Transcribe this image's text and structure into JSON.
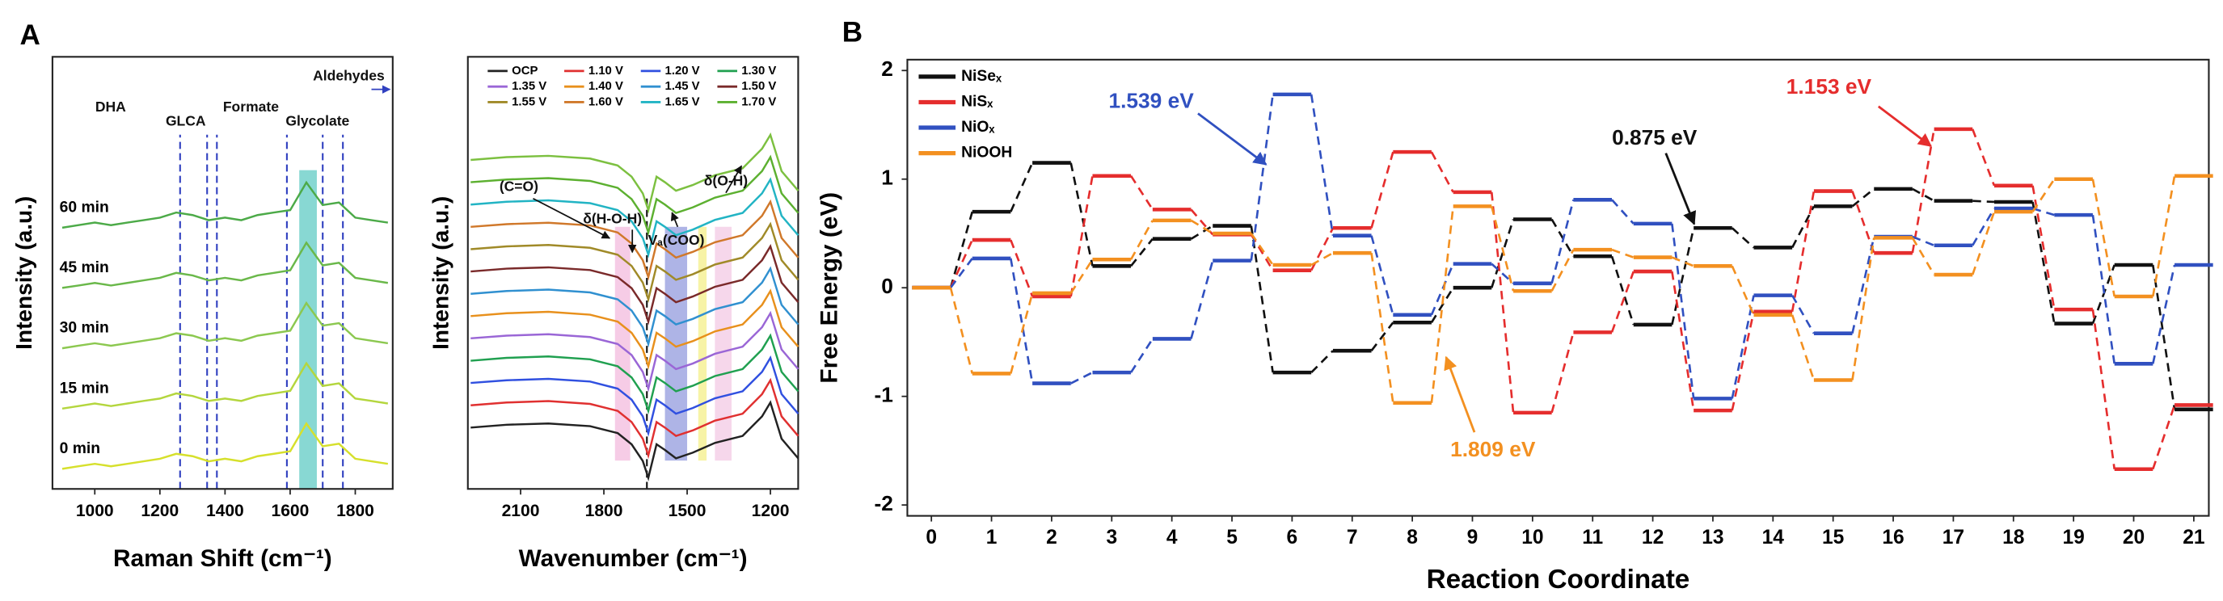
{
  "chart_data": [
    {
      "type": "line",
      "panel": "A",
      "x_label": "Raman Shift (cm⁻¹)",
      "y_label": "Intensity (a.u.)",
      "x": [
        900,
        950,
        1000,
        1050,
        1100,
        1150,
        1200,
        1250,
        1300,
        1350,
        1400,
        1450,
        1500,
        1550,
        1600,
        1650,
        1700,
        1750,
        1800,
        1850,
        1900
      ],
      "xlim": [
        870,
        1915
      ],
      "xticks": [
        1000,
        1200,
        1400,
        1600,
        1800
      ],
      "ylim": [
        -0.4,
        8.2
      ],
      "legend": "inline",
      "series": [
        {
          "name": "0 min",
          "color": "#d6e02c",
          "values": [
            0,
            0.05,
            0.1,
            0.05,
            0.1,
            0.15,
            0.2,
            0.3,
            0.25,
            0.15,
            0.2,
            0.15,
            0.25,
            0.3,
            0.35,
            0.9,
            0.45,
            0.5,
            0.2,
            0.15,
            0.1
          ]
        },
        {
          "name": "15 min",
          "color": "#b4d63e",
          "values": [
            1.2,
            1.25,
            1.3,
            1.25,
            1.3,
            1.35,
            1.4,
            1.5,
            1.45,
            1.35,
            1.4,
            1.35,
            1.45,
            1.5,
            1.55,
            2.1,
            1.65,
            1.7,
            1.4,
            1.35,
            1.3
          ]
        },
        {
          "name": "30 min",
          "color": "#8cc850",
          "values": [
            2.4,
            2.45,
            2.5,
            2.45,
            2.5,
            2.55,
            2.6,
            2.7,
            2.65,
            2.55,
            2.6,
            2.55,
            2.65,
            2.7,
            2.75,
            3.3,
            2.85,
            2.9,
            2.6,
            2.55,
            2.5
          ]
        },
        {
          "name": "45 min",
          "color": "#6ab84a",
          "values": [
            3.6,
            3.65,
            3.7,
            3.65,
            3.7,
            3.75,
            3.8,
            3.9,
            3.85,
            3.75,
            3.8,
            3.75,
            3.85,
            3.9,
            3.95,
            4.5,
            4.05,
            4.1,
            3.8,
            3.75,
            3.7
          ]
        },
        {
          "name": "60 min",
          "color": "#4caa48",
          "values": [
            4.8,
            4.85,
            4.9,
            4.85,
            4.9,
            4.95,
            5.0,
            5.1,
            5.05,
            4.95,
            5.0,
            4.95,
            5.05,
            5.1,
            5.15,
            5.7,
            5.25,
            5.3,
            5.0,
            4.95,
            4.9
          ]
        }
      ],
      "ref_lines": [
        1262,
        1345,
        1375,
        1590,
        1700,
        1762
      ],
      "bands": [
        {
          "from": 1628,
          "to": 1682,
          "color": "#56c8c0"
        }
      ],
      "annotations": [
        {
          "text": "DHA"
        },
        {
          "text": "GLCA"
        },
        {
          "text": "Formate"
        },
        {
          "text": "Glycolate"
        },
        {
          "text": "Aldehydes"
        }
      ]
    },
    {
      "type": "line",
      "x_label": "Wavenumber (cm⁻¹)",
      "y_label": "Intensity (a.u.)",
      "x": [
        2280,
        2150,
        2000,
        1850,
        1750,
        1700,
        1660,
        1640,
        1610,
        1580,
        1540,
        1480,
        1400,
        1300,
        1230,
        1200,
        1160,
        1100
      ],
      "xlim": [
        2290,
        1100
      ],
      "xticks": [
        2100,
        1800,
        1500,
        1200
      ],
      "ylim": [
        -2,
        13.5
      ],
      "legend": "top",
      "series": [
        {
          "name": "OCP",
          "color": "#222222",
          "values": [
            0.2,
            0.3,
            0.35,
            0.25,
            0,
            -0.4,
            -1.0,
            -1.6,
            -0.4,
            -0.6,
            -0.9,
            -0.7,
            -0.35,
            -0.1,
            0.6,
            1.1,
            -0.2,
            -0.9
          ]
        },
        {
          "name": "1.10 V",
          "color": "#e03030",
          "values": [
            1.0,
            1.1,
            1.15,
            1.05,
            0.8,
            0.4,
            -0.2,
            -0.8,
            0.4,
            0.2,
            -0.1,
            0.1,
            0.45,
            0.7,
            1.4,
            1.9,
            0.6,
            -0.1
          ]
        },
        {
          "name": "1.20 V",
          "color": "#3050e0",
          "values": [
            1.8,
            1.9,
            1.95,
            1.85,
            1.6,
            1.2,
            0.6,
            0,
            1.2,
            1.0,
            0.7,
            0.9,
            1.25,
            1.5,
            2.2,
            2.7,
            1.4,
            0.7
          ]
        },
        {
          "name": "1.30 V",
          "color": "#20a050",
          "values": [
            2.6,
            2.7,
            2.75,
            2.65,
            2.4,
            2.0,
            1.4,
            0.8,
            2.0,
            1.8,
            1.5,
            1.7,
            2.05,
            2.3,
            3.0,
            3.5,
            2.2,
            1.5
          ]
        },
        {
          "name": "1.35 V",
          "color": "#9a66d6",
          "values": [
            3.4,
            3.5,
            3.55,
            3.45,
            3.2,
            2.8,
            2.2,
            1.6,
            2.8,
            2.6,
            2.3,
            2.5,
            2.85,
            3.1,
            3.8,
            4.3,
            3.0,
            2.3
          ]
        },
        {
          "name": "1.40 V",
          "color": "#e8901c",
          "values": [
            4.2,
            4.3,
            4.35,
            4.25,
            4.0,
            3.6,
            3.0,
            2.4,
            3.6,
            3.4,
            3.1,
            3.3,
            3.65,
            3.9,
            4.6,
            5.1,
            3.8,
            3.1
          ]
        },
        {
          "name": "1.45 V",
          "color": "#3090d0",
          "values": [
            5.0,
            5.1,
            5.15,
            5.05,
            4.8,
            4.4,
            3.8,
            3.2,
            4.4,
            4.2,
            3.9,
            4.1,
            4.45,
            4.7,
            5.4,
            5.9,
            4.6,
            3.9
          ]
        },
        {
          "name": "1.50 V",
          "color": "#7a2a2a",
          "values": [
            5.8,
            5.9,
            5.95,
            5.85,
            5.6,
            5.2,
            4.6,
            4.0,
            5.2,
            5.0,
            4.7,
            4.9,
            5.25,
            5.5,
            6.2,
            6.7,
            5.4,
            4.7
          ]
        },
        {
          "name": "1.55 V",
          "color": "#a08a28",
          "values": [
            6.6,
            6.7,
            6.75,
            6.65,
            6.4,
            6.0,
            5.4,
            4.8,
            6.0,
            5.8,
            5.5,
            5.7,
            6.05,
            6.3,
            7.0,
            7.5,
            6.2,
            5.5
          ]
        },
        {
          "name": "1.60 V",
          "color": "#d0782a",
          "values": [
            7.4,
            7.5,
            7.55,
            7.45,
            7.2,
            6.8,
            6.2,
            5.6,
            6.8,
            6.6,
            6.3,
            6.5,
            6.85,
            7.1,
            7.8,
            8.3,
            7.0,
            6.3
          ]
        },
        {
          "name": "1.65 V",
          "color": "#22b4c4",
          "values": [
            8.2,
            8.3,
            8.35,
            8.25,
            8.0,
            7.6,
            7.0,
            6.4,
            7.6,
            7.4,
            7.1,
            7.3,
            7.65,
            7.9,
            8.6,
            9.1,
            7.8,
            7.1
          ]
        },
        {
          "name": "1.70 V",
          "color": "#5cb030",
          "values": [
            9.0,
            9.1,
            9.15,
            9.05,
            8.8,
            8.4,
            7.8,
            7.2,
            8.4,
            8.2,
            7.9,
            8.1,
            8.45,
            8.7,
            9.4,
            9.9,
            8.6,
            7.9
          ]
        },
        {
          "name": "1.70 V",
          "color": "#7cc040",
          "values": [
            9.8,
            9.9,
            9.95,
            9.85,
            9.6,
            9.2,
            8.6,
            8.0,
            9.2,
            9.0,
            8.7,
            8.9,
            9.25,
            9.5,
            10.2,
            10.7,
            9.4,
            8.7
          ]
        }
      ],
      "ref_lines": [
        1645
      ],
      "bands": [
        {
          "from": 1760,
          "to": 1705,
          "color": "#f2b6dc"
        },
        {
          "from": 1580,
          "to": 1500,
          "color": "#8c94dc"
        },
        {
          "from": 1460,
          "to": 1430,
          "color": "#f4ee80"
        },
        {
          "from": 1400,
          "to": 1340,
          "color": "#f2c6e2"
        }
      ],
      "annotations": [
        {
          "text": "(C=O)"
        },
        {
          "text": "δ(H-O-H)"
        },
        {
          "text": "Vₐ(COO)"
        },
        {
          "text": "δ(O-H)"
        }
      ]
    },
    {
      "type": "step",
      "panel": "B",
      "x_label": "Reaction Coordinate",
      "y_label": "Free Energy (eV)",
      "x": [
        0,
        1,
        2,
        3,
        4,
        5,
        6,
        7,
        8,
        9,
        10,
        11,
        12,
        13,
        14,
        15,
        16,
        17,
        18,
        19,
        20,
        21
      ],
      "xlim": [
        -0.4,
        21.25
      ],
      "xticks": [
        0,
        1,
        2,
        3,
        4,
        5,
        6,
        7,
        8,
        9,
        10,
        11,
        12,
        13,
        14,
        15,
        16,
        17,
        18,
        19,
        20,
        21
      ],
      "ylim": [
        -2.1,
        2.1
      ],
      "yticks": [
        -2,
        -1,
        0,
        1,
        2
      ],
      "legend": "upper left",
      "series": [
        {
          "name": "NiSeₓ",
          "color": "#111111",
          "values": [
            0,
            0.7,
            1.15,
            0.2,
            0.45,
            0.57,
            -0.78,
            -0.58,
            -0.32,
            0.0,
            0.63,
            0.29,
            -0.34,
            0.55,
            0.37,
            0.75,
            0.91,
            0.8,
            0.79,
            -0.33,
            0.21,
            -1.12
          ]
        },
        {
          "name": "NiSₓ",
          "color": "#e52d2d",
          "values": [
            0,
            0.44,
            -0.08,
            1.03,
            0.72,
            0.49,
            0.16,
            0.55,
            1.25,
            0.88,
            -1.15,
            -0.41,
            0.15,
            -1.13,
            -0.22,
            0.89,
            0.32,
            1.46,
            0.94,
            -0.2,
            -1.67,
            -1.08
          ]
        },
        {
          "name": "NiOₓ",
          "color": "#3050c0",
          "values": [
            0,
            0.27,
            -0.88,
            -0.78,
            -0.47,
            0.25,
            1.78,
            0.48,
            -0.25,
            0.22,
            0.04,
            0.81,
            0.59,
            -1.02,
            -0.07,
            -0.42,
            0.47,
            0.39,
            0.73,
            0.67,
            -0.7,
            0.21
          ]
        },
        {
          "name": "NiOOH",
          "color": "#f39020",
          "values": [
            0,
            -0.79,
            -0.05,
            0.26,
            0.62,
            0.5,
            0.21,
            0.32,
            -1.06,
            0.75,
            -0.03,
            0.35,
            0.28,
            0.2,
            -0.25,
            -0.85,
            0.46,
            0.12,
            0.7,
            1.0,
            -0.08,
            1.03
          ]
        }
      ],
      "annotations": [
        {
          "text": "1.539 eV",
          "color": "#3050c0"
        },
        {
          "text": "0.875 eV",
          "color": "#111111"
        },
        {
          "text": "1.153 eV",
          "color": "#e52d2d"
        },
        {
          "text": "1.809 eV",
          "color": "#f39020"
        }
      ]
    }
  ]
}
